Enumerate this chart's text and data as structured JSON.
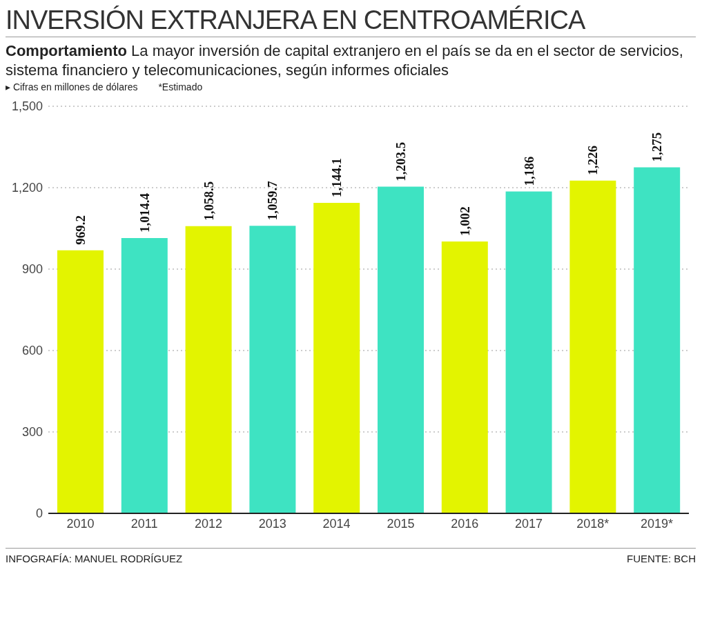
{
  "chart_data": {
    "type": "bar",
    "title": "INVERSIÓN EXTRANJERA EN CENTROAMÉRICA",
    "subtitle": "Comportamiento La mayor inversión de capital extranjero en el país se da en el sector de servicios, sistema financiero y telecomunicaciones, según informes oficiales",
    "annotations": [
      "▸ Cifras en millones de dólares",
      "*Estimado",
      "INFOGRAFÍA: MANUEL RODRÍGUEZ",
      "FUENTE: BCH"
    ],
    "categories": [
      "2010",
      "2011",
      "2012",
      "2013",
      "2014",
      "2015",
      "2016",
      "2017",
      "2018*",
      "2019*"
    ],
    "values": [
      969.2,
      1014.4,
      1058.5,
      1059.7,
      1144.1,
      1203.5,
      1002,
      1186,
      1226,
      1275
    ],
    "value_labels": [
      "969.2",
      "1,014.4",
      "1,058.5",
      "1,059.7",
      "1,144.1",
      "1,203.5",
      "1,002",
      "1,186",
      "1,226",
      "1,275"
    ],
    "colors": [
      "#e3f400",
      "#3ee3c2",
      "#e3f400",
      "#3ee3c2",
      "#e3f400",
      "#3ee3c2",
      "#e3f400",
      "#3ee3c2",
      "#e3f400",
      "#3ee3c2"
    ],
    "ylim": [
      0,
      1500
    ],
    "yticks": [
      0,
      300,
      600,
      900,
      {
        "value": 1200,
        "label": "1,200"
      },
      {
        "value": 1500,
        "label": "1,500"
      }
    ],
    "grid": "y",
    "legend": false
  }
}
